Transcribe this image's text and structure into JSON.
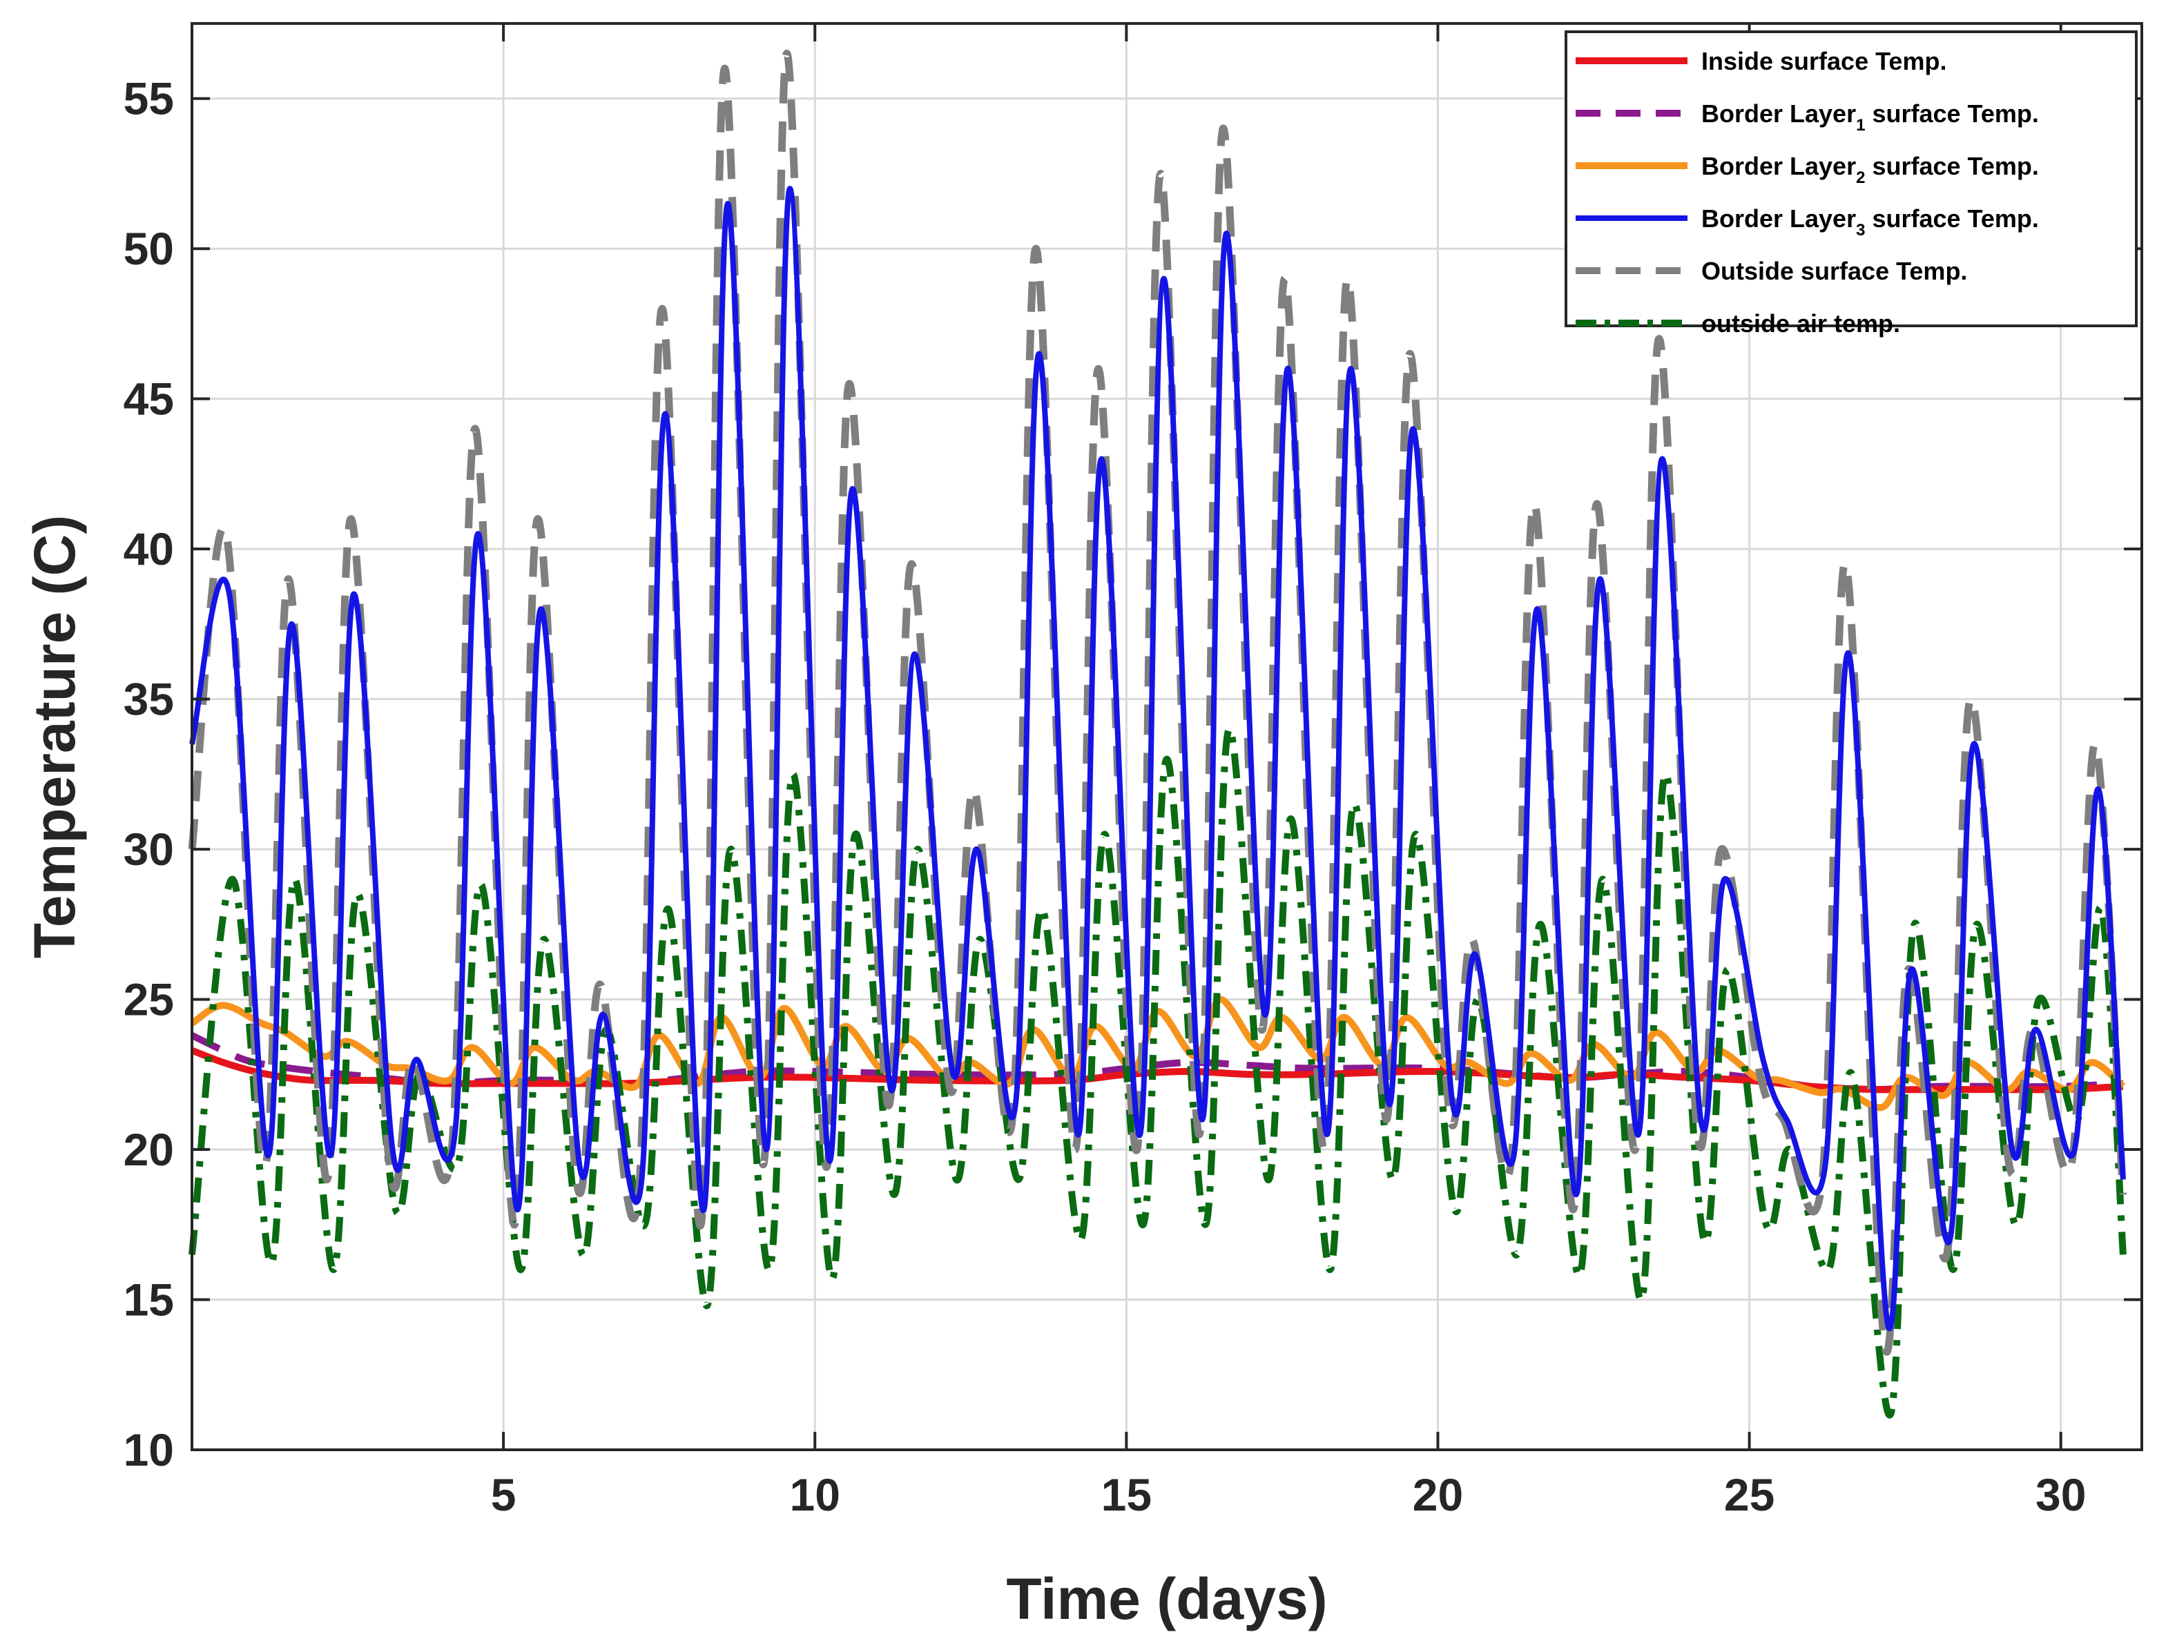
{
  "chart_data": {
    "type": "line",
    "title": "",
    "xlabel": "Time (days)",
    "ylabel": "Temperature (C)",
    "xlim": [
      0,
      31.3
    ],
    "ylim": [
      10,
      57.5
    ],
    "xticks": [
      5,
      10,
      15,
      20,
      25,
      30
    ],
    "xtick_labels": [
      "5",
      "10",
      "15",
      "20",
      "25",
      "30"
    ],
    "yticks": [
      10,
      15,
      20,
      25,
      30,
      35,
      40,
      45,
      50,
      55
    ],
    "ytick_labels": [
      "10",
      "15",
      "20",
      "25",
      "30",
      "35",
      "40",
      "45",
      "50",
      "55"
    ],
    "grid": true,
    "legend_position": "top-right",
    "series": [
      {
        "name": "Inside surface Temp.",
        "legend_label": "Inside surface Temp.",
        "color": "#e8141b",
        "style": "solid",
        "x": [
          0,
          0.5,
          1.0,
          1.5,
          2.0,
          3.0,
          4.0,
          5.0,
          6.0,
          7.0,
          8.0,
          9.0,
          10.0,
          12.0,
          14.0,
          15.0,
          16.0,
          17.0,
          18.0,
          20.0,
          22.0,
          23.0,
          24.0,
          25.0,
          26.0,
          27.0,
          28.0,
          29.0,
          30.0,
          31.0
        ],
        "values": [
          23.3,
          22.9,
          22.6,
          22.4,
          22.3,
          22.3,
          22.2,
          22.2,
          22.2,
          22.2,
          22.3,
          22.4,
          22.4,
          22.3,
          22.3,
          22.5,
          22.6,
          22.5,
          22.5,
          22.6,
          22.4,
          22.5,
          22.4,
          22.3,
          22.1,
          22.0,
          22.0,
          22.0,
          22.0,
          22.1
        ]
      },
      {
        "name": "Border Layer1 surface Temp.",
        "legend_label": "Border Layer",
        "legend_sub": "1",
        "legend_suffix": " surface Temp.",
        "color": "#8b1a8f",
        "style": "dashed",
        "x": [
          0,
          0.5,
          1.0,
          2.0,
          3.0,
          4.0,
          5.0,
          6.0,
          7.0,
          8.0,
          9.0,
          10.0,
          12.0,
          14.0,
          15.0,
          16.0,
          17.0,
          18.0,
          20.0,
          22.0,
          23.0,
          24.0,
          25.0,
          26.0,
          27.0,
          28.0,
          29.0,
          30.0,
          31.0
        ],
        "values": [
          23.8,
          23.3,
          22.9,
          22.6,
          22.4,
          22.2,
          22.3,
          22.3,
          22.2,
          22.4,
          22.6,
          22.6,
          22.5,
          22.5,
          22.7,
          22.9,
          22.8,
          22.7,
          22.7,
          22.4,
          22.5,
          22.6,
          22.4,
          22.1,
          22.0,
          22.1,
          22.1,
          22.1,
          22.2
        ]
      },
      {
        "name": "Border Layer2 surface Temp.",
        "legend_label": "Border Layer",
        "legend_sub": "2",
        "legend_suffix": " surface Temp.",
        "color": "#f7941d",
        "style": "solid",
        "peak_day": [
          0.5,
          1.5,
          2.5,
          3.5,
          4.5,
          5.5,
          6.5,
          7.5,
          8.5,
          9.5,
          10.5,
          11.5,
          12.5,
          13.5,
          14.5,
          15.5,
          16.5,
          17.5,
          18.5,
          19.5,
          20.5,
          21.5,
          22.5,
          23.5,
          24.5,
          25.5,
          26.5,
          27.5,
          28.5,
          29.5,
          30.5
        ],
        "peak_values": [
          24.8,
          23.9,
          23.6,
          22.7,
          23.4,
          23.4,
          22.6,
          23.8,
          24.4,
          24.7,
          24.1,
          23.7,
          22.9,
          24.0,
          24.1,
          24.6,
          25.0,
          24.4,
          24.4,
          24.4,
          22.9,
          23.2,
          23.5,
          23.9,
          23.3,
          22.3,
          22.0,
          22.4,
          22.9,
          22.6,
          22.9
        ],
        "min_values": [
          24.2,
          23.1,
          22.8,
          22.3,
          22.2,
          22.3,
          22.1,
          22.2,
          22.4,
          22.8,
          22.6,
          22.4,
          22.2,
          22.4,
          22.7,
          23.1,
          23.4,
          23.0,
          22.8,
          22.8,
          22.2,
          22.3,
          22.4,
          22.6,
          22.4,
          21.9,
          21.4,
          21.8,
          22.0,
          22.0,
          22.1
        ]
      },
      {
        "name": "Border Layer3 surface Temp.",
        "legend_label": "Border Layer",
        "legend_sub": "3",
        "legend_suffix": " surface Temp.",
        "color": "#1414e6",
        "style": "solid",
        "peak_day": [
          0.6,
          1.6,
          2.6,
          3.6,
          4.6,
          5.6,
          6.6,
          7.6,
          8.6,
          9.6,
          10.6,
          11.6,
          12.6,
          13.6,
          14.6,
          15.6,
          16.6,
          17.6,
          18.6,
          19.6,
          20.6,
          21.6,
          22.6,
          23.6,
          24.6,
          25.6,
          26.6,
          27.6,
          28.6,
          29.6,
          30.6
        ],
        "peak_values": [
          38.5,
          37.5,
          38.5,
          23.0,
          40.5,
          38.0,
          24.5,
          44.5,
          51.5,
          52.0,
          42.0,
          36.5,
          30.0,
          46.5,
          43.0,
          49.0,
          50.5,
          46.0,
          46.0,
          44.0,
          26.5,
          38.0,
          39.0,
          43.0,
          29.0,
          21.0,
          36.5,
          26.0,
          33.5,
          24.0,
          32.0
        ],
        "min_values": [
          19.8,
          19.8,
          20.0,
          20.5,
          18.0,
          19.5,
          19.0,
          18.0,
          20.0,
          19.7,
          22.0,
          22.5,
          21.5,
          20.5,
          20.5,
          21.0,
          24.5,
          20.5,
          21.5,
          21.8,
          19.8,
          18.5,
          20.5,
          21.0,
          23.0,
          19.5,
          14.2,
          17.0,
          20.0,
          20.0,
          19.0
        ],
        "start_value": 33.5
      },
      {
        "name": "Outside surface Temp.",
        "legend_label": "Outside surface Temp.",
        "color": "#7f7f7f",
        "style": "dashed",
        "peak_day": [
          0.55,
          1.55,
          2.55,
          3.55,
          4.55,
          5.55,
          6.55,
          7.55,
          8.55,
          9.55,
          10.55,
          11.55,
          12.55,
          13.55,
          14.55,
          15.55,
          16.55,
          17.55,
          18.55,
          19.55,
          20.55,
          21.55,
          22.55,
          23.55,
          24.55,
          25.55,
          26.55,
          27.55,
          28.55,
          29.55,
          30.55
        ],
        "peak_values": [
          40.5,
          39.0,
          41.0,
          23.0,
          44.0,
          41.0,
          25.5,
          48.0,
          56.0,
          56.5,
          45.5,
          39.5,
          32.0,
          50.0,
          46.0,
          52.5,
          54.0,
          49.0,
          49.0,
          46.5,
          27.0,
          41.5,
          41.5,
          47.0,
          30.0,
          21.0,
          39.5,
          26.0,
          35.0,
          24.0,
          33.5
        ],
        "min_values": [
          19.5,
          19.0,
          19.5,
          20.0,
          17.5,
          19.0,
          18.5,
          17.5,
          19.5,
          19.5,
          21.5,
          22.0,
          21.0,
          20.0,
          20.0,
          20.5,
          24.0,
          20.0,
          21.0,
          21.5,
          19.5,
          18.0,
          20.0,
          20.5,
          22.5,
          19.0,
          13.5,
          16.5,
          19.5,
          19.5,
          18.5
        ],
        "start_value": 30.0
      },
      {
        "name": "outside air temp.",
        "legend_label": "outside air temp.",
        "color": "#0a6b12",
        "style": "dashdot",
        "peak_day": [
          0.65,
          1.65,
          2.65,
          3.65,
          4.65,
          5.65,
          6.65,
          7.65,
          8.65,
          9.65,
          10.65,
          11.65,
          12.65,
          13.65,
          14.65,
          15.65,
          16.65,
          17.65,
          18.65,
          19.65,
          20.65,
          21.65,
          22.65,
          23.65,
          24.65,
          25.65,
          26.65,
          27.65,
          28.65,
          29.65,
          30.65
        ],
        "peak_values": [
          29.0,
          29.0,
          28.5,
          22.5,
          28.8,
          27.0,
          24.0,
          28.0,
          30.0,
          32.5,
          30.5,
          30.0,
          27.0,
          28.0,
          30.5,
          33.0,
          34.0,
          31.0,
          31.5,
          30.5,
          25.0,
          27.5,
          29.0,
          32.5,
          26.0,
          20.0,
          22.5,
          27.5,
          27.5,
          25.0,
          28.0
        ],
        "min_values": [
          16.2,
          16.0,
          18.0,
          19.5,
          16.0,
          16.5,
          17.5,
          14.8,
          16.0,
          15.7,
          18.5,
          19.0,
          19.0,
          17.0,
          17.5,
          17.5,
          19.0,
          16.0,
          19.0,
          18.0,
          16.5,
          15.8,
          15.0,
          17.0,
          17.5,
          16.0,
          11.2,
          16.0,
          17.5,
          21.0,
          16.5
        ],
        "start_value": 16.5
      }
    ]
  }
}
